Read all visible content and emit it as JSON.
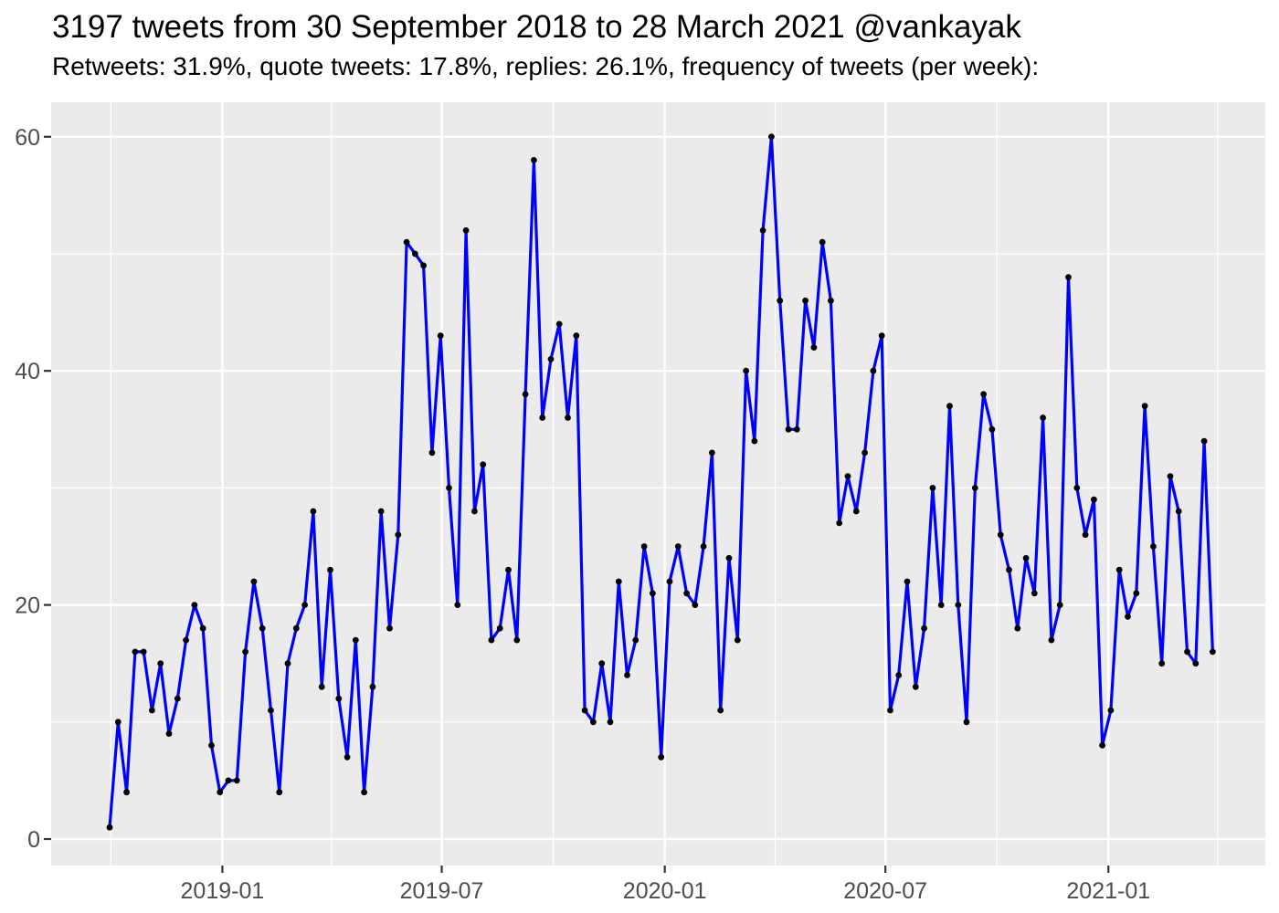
{
  "header": {
    "title": "3197 tweets from 30 September 2018 to 28 March 2021 @vankayak",
    "subtitle": "Retweets: 31.9%, quote tweets: 17.8%, replies: 26.1%, frequency of tweets (per week):"
  },
  "stats": {
    "total_tweets": 3197,
    "retweets_pct": "31.9%",
    "quote_tweets_pct": "17.8%",
    "replies_pct": "26.1%",
    "account": "@vankayak",
    "range_start": "30 September 2018",
    "range_end": "28 March 2021"
  },
  "chart_data": {
    "type": "line",
    "title": "3197 tweets from 30 September 2018 to 28 March 2021 @vankayak",
    "subtitle": "Retweets: 31.9%, quote tweets: 17.8%, replies: 26.1%, frequency of tweets (per week):",
    "series_name": "tweets-per-week",
    "start_date": "2018-09-30",
    "end_date": "2021-03-28",
    "interval_days": 7,
    "values": [
      1,
      10,
      4,
      16,
      16,
      11,
      15,
      9,
      12,
      17,
      20,
      18,
      8,
      4,
      5,
      5,
      16,
      22,
      18,
      11,
      4,
      15,
      18,
      20,
      28,
      13,
      23,
      12,
      7,
      17,
      4,
      13,
      28,
      18,
      26,
      51,
      50,
      49,
      33,
      43,
      30,
      20,
      52,
      28,
      32,
      17,
      18,
      23,
      17,
      38,
      58,
      36,
      41,
      44,
      36,
      43,
      11,
      10,
      15,
      10,
      22,
      14,
      17,
      25,
      21,
      7,
      22,
      25,
      21,
      20,
      25,
      33,
      11,
      24,
      17,
      40,
      34,
      52,
      60,
      46,
      35,
      35,
      46,
      42,
      51,
      46,
      27,
      31,
      28,
      33,
      40,
      43,
      11,
      14,
      22,
      13,
      18,
      30,
      20,
      37,
      20,
      10,
      30,
      38,
      35,
      26,
      23,
      18,
      24,
      21,
      36,
      17,
      20,
      48,
      30,
      26,
      29,
      8,
      11,
      23,
      19,
      21,
      37,
      25,
      15,
      31,
      28,
      16,
      15,
      34,
      16
    ],
    "xlabel": "",
    "ylabel": "",
    "ylim": [
      0,
      62
    ],
    "y_ticks": [
      0,
      20,
      40,
      60
    ],
    "y_minor_ticks": [
      10,
      30,
      50
    ],
    "x_ticks": [
      {
        "label": "2019-01",
        "date": "2019-01-01"
      },
      {
        "label": "2019-07",
        "date": "2019-07-01"
      },
      {
        "label": "2020-01",
        "date": "2020-01-01"
      },
      {
        "label": "2020-07",
        "date": "2020-07-01"
      },
      {
        "label": "2021-01",
        "date": "2021-01-01"
      }
    ],
    "x_minor_grid_dates": [
      "2018-10-01",
      "2019-04-01",
      "2019-10-01",
      "2020-04-01",
      "2020-10-01",
      "2021-04-01"
    ],
    "grid": true,
    "legend_position": "none",
    "colors": {
      "line": "#0000FF",
      "point": "#000000",
      "panel_bg": "#EBEBEB",
      "grid": "#FFFFFF",
      "axis_text": "#4D4D4D",
      "tick_mark": "#333333",
      "title_text": "#000000"
    }
  }
}
